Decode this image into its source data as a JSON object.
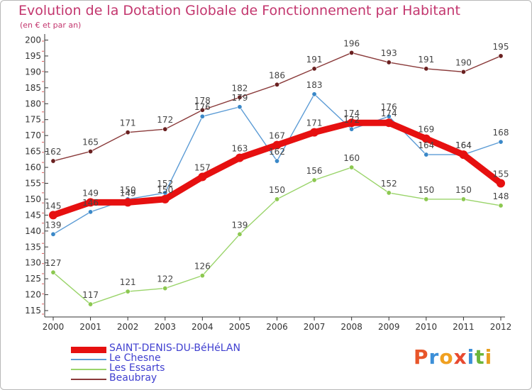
{
  "header": {
    "title": "Evolution de la Dotation Globale de Fonctionnement par Habitant",
    "subtitle": "(en € et par an)"
  },
  "brand": {
    "text": "Proxiti",
    "letters": [
      "P",
      "r",
      "o",
      "x",
      "i",
      "t",
      "i"
    ],
    "letter_colors": [
      "#e8562a",
      "#3c8fd8",
      "#f0a020",
      "#e84a30",
      "#3c8fd8",
      "#6ab53a",
      "#e8a020"
    ]
  },
  "chart_data": {
    "type": "line",
    "title": "Evolution de la Dotation Globale de Fonctionnement par Habitant",
    "subtitle": "(en € et par an)",
    "xlabel": "",
    "ylabel": "",
    "x": [
      "2000",
      "2001",
      "2002",
      "2003",
      "2004",
      "2005",
      "2006",
      "2007",
      "2008",
      "2009",
      "2010",
      "2011",
      "2012"
    ],
    "ylim": [
      113,
      201
    ],
    "yticks": [
      115,
      120,
      125,
      130,
      135,
      140,
      145,
      150,
      155,
      160,
      165,
      170,
      175,
      180,
      185,
      190,
      195,
      200
    ],
    "grid": false,
    "legend_position": "bottom-left",
    "series": [
      {
        "name": "SAINT-DENIS-DU-BéHéLAN",
        "color": "#e61010",
        "values": [
          145,
          149,
          149,
          150,
          157,
          163,
          167,
          171,
          174,
          174,
          169,
          164,
          155
        ]
      },
      {
        "name": "Le Chesne",
        "color": "#5b9bd5",
        "values": [
          139,
          146,
          150,
          152,
          176,
          179,
          162,
          183,
          172,
          176,
          164,
          164,
          168
        ]
      },
      {
        "name": "Les Essarts",
        "color": "#9ad46a",
        "values": [
          127,
          117,
          121,
          122,
          126,
          139,
          150,
          156,
          160,
          152,
          150,
          150,
          148
        ]
      },
      {
        "name": "Beaubray",
        "color": "#8a3a3a",
        "values": [
          162,
          165,
          171,
          172,
          178,
          182,
          186,
          191,
          196,
          193,
          191,
          190,
          195
        ]
      }
    ]
  }
}
